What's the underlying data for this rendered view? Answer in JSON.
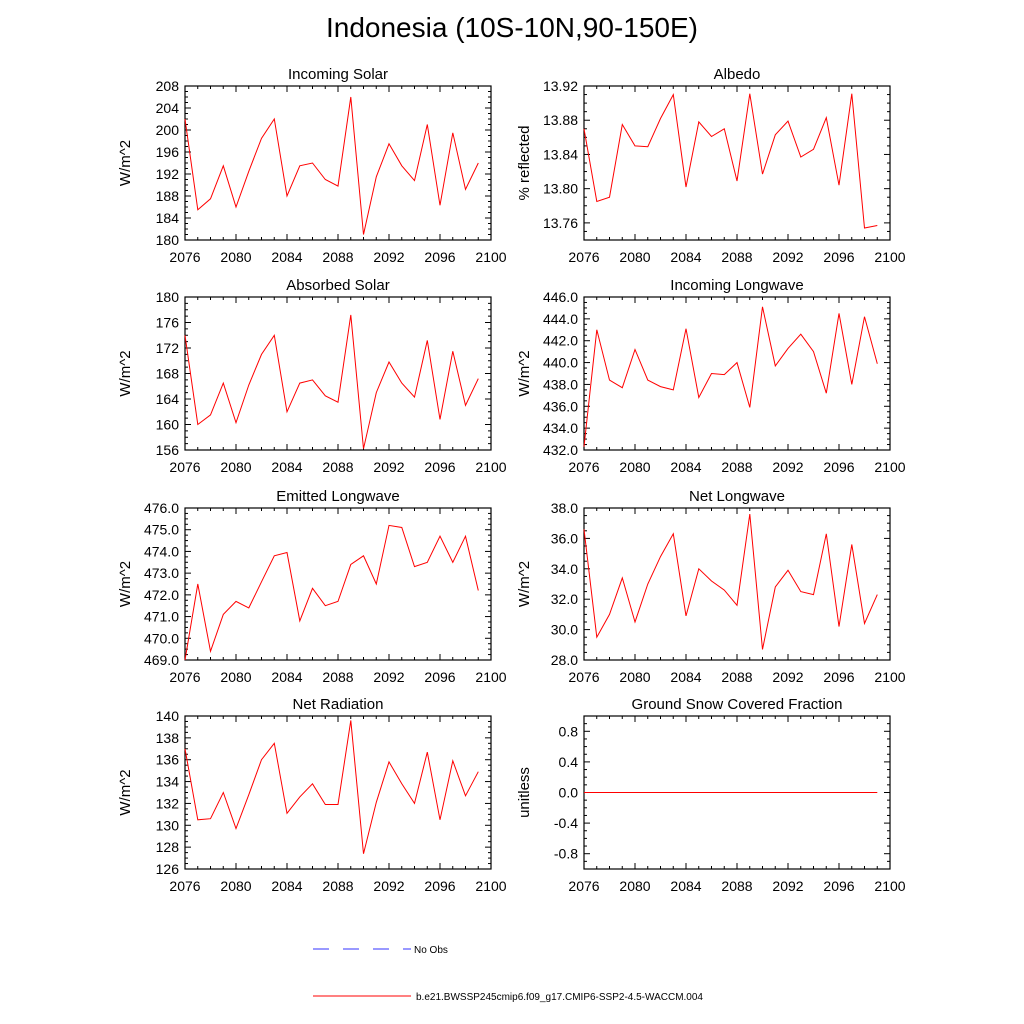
{
  "title": "Indonesia (10S-10N,90-150E)",
  "colors": {
    "model": "#ff0000",
    "obs": "#3333ff"
  },
  "legend": {
    "obs_label": "No Obs",
    "model_label": "b.e21.BWSSP245cmip6.f09_g17.CMIP6-SSP2-4.5-WACCM.004"
  },
  "chart_data": [
    {
      "type": "line",
      "title": "Incoming Solar",
      "xlabel": "",
      "ylabel": "W/m^2",
      "xlim": [
        2076,
        2100
      ],
      "ylim": [
        180,
        208
      ],
      "xticks": [
        2076,
        2080,
        2084,
        2088,
        2092,
        2096,
        2100
      ],
      "yticks": [
        180,
        184,
        188,
        192,
        196,
        200,
        204,
        208
      ],
      "ytick_labels": [
        "180",
        "184",
        "188",
        "192",
        "196",
        "200",
        "204",
        "208"
      ],
      "series": [
        {
          "name": "b.e21.BWSSP245cmip6.f09_g17.CMIP6-SSP2-4.5-WACCM.004",
          "x": [
            2076,
            2077,
            2078,
            2079,
            2080,
            2081,
            2082,
            2083,
            2084,
            2085,
            2086,
            2087,
            2088,
            2089,
            2090,
            2091,
            2092,
            2093,
            2094,
            2095,
            2096,
            2097,
            2098,
            2099
          ],
          "values": [
            202.0,
            185.5,
            187.5,
            193.5,
            186.0,
            192.5,
            198.5,
            202.0,
            188.0,
            193.5,
            194.0,
            191.0,
            189.8,
            206.0,
            181.0,
            191.5,
            197.5,
            193.5,
            190.8,
            201.0,
            186.3,
            199.5,
            189.2,
            194.0
          ]
        }
      ]
    },
    {
      "type": "line",
      "title": "Albedo",
      "xlabel": "",
      "ylabel": "% reflected",
      "xlim": [
        2076,
        2100
      ],
      "ylim": [
        13.74,
        13.92
      ],
      "xticks": [
        2076,
        2080,
        2084,
        2088,
        2092,
        2096,
        2100
      ],
      "yticks": [
        13.76,
        13.8,
        13.84,
        13.88,
        13.92
      ],
      "ytick_labels": [
        "13.76",
        "13.80",
        "13.84",
        "13.88",
        "13.92"
      ],
      "series": [
        {
          "name": "b.e21.BWSSP245cmip6.f09_g17.CMIP6-SSP2-4.5-WACCM.004",
          "x": [
            2076,
            2077,
            2078,
            2079,
            2080,
            2081,
            2082,
            2083,
            2084,
            2085,
            2086,
            2087,
            2088,
            2089,
            2090,
            2091,
            2092,
            2093,
            2094,
            2095,
            2096,
            2097,
            2098,
            2099
          ],
          "values": [
            13.87,
            13.785,
            13.79,
            13.875,
            13.85,
            13.849,
            13.882,
            13.91,
            13.802,
            13.878,
            13.861,
            13.87,
            13.809,
            13.911,
            13.817,
            13.863,
            13.879,
            13.837,
            13.846,
            13.883,
            13.804,
            13.911,
            13.754,
            13.757
          ]
        }
      ]
    },
    {
      "type": "line",
      "title": "Absorbed Solar",
      "xlabel": "",
      "ylabel": "W/m^2",
      "xlim": [
        2076,
        2100
      ],
      "ylim": [
        156,
        180
      ],
      "xticks": [
        2076,
        2080,
        2084,
        2088,
        2092,
        2096,
        2100
      ],
      "yticks": [
        156,
        160,
        164,
        168,
        172,
        176,
        180
      ],
      "ytick_labels": [
        "156",
        "160",
        "164",
        "168",
        "172",
        "176",
        "180"
      ],
      "series": [
        {
          "name": "b.e21.BWSSP245cmip6.f09_g17.CMIP6-SSP2-4.5-WACCM.004",
          "x": [
            2076,
            2077,
            2078,
            2079,
            2080,
            2081,
            2082,
            2083,
            2084,
            2085,
            2086,
            2087,
            2088,
            2089,
            2090,
            2091,
            2092,
            2093,
            2094,
            2095,
            2096,
            2097,
            2098,
            2099
          ],
          "values": [
            174.0,
            160.0,
            161.5,
            166.5,
            160.3,
            166.2,
            171.0,
            174.0,
            162.0,
            166.5,
            167.0,
            164.5,
            163.5,
            177.2,
            156.2,
            165.0,
            169.8,
            166.5,
            164.3,
            173.2,
            160.8,
            171.5,
            163.0,
            167.2
          ]
        }
      ]
    },
    {
      "type": "line",
      "title": "Incoming Longwave",
      "xlabel": "",
      "ylabel": "W/m^2",
      "xlim": [
        2076,
        2100
      ],
      "ylim": [
        432,
        446
      ],
      "xticks": [
        2076,
        2080,
        2084,
        2088,
        2092,
        2096,
        2100
      ],
      "yticks": [
        432,
        434,
        436,
        438,
        440,
        442,
        444,
        446
      ],
      "ytick_labels": [
        "432.0",
        "434.0",
        "436.0",
        "438.0",
        "440.0",
        "442.0",
        "444.0",
        "446.0"
      ],
      "series": [
        {
          "name": "b.e21.BWSSP245cmip6.f09_g17.CMIP6-SSP2-4.5-WACCM.004",
          "x": [
            2076,
            2077,
            2078,
            2079,
            2080,
            2081,
            2082,
            2083,
            2084,
            2085,
            2086,
            2087,
            2088,
            2089,
            2090,
            2091,
            2092,
            2093,
            2094,
            2095,
            2096,
            2097,
            2098,
            2099
          ],
          "values": [
            432.3,
            443.0,
            438.4,
            437.7,
            441.2,
            438.4,
            437.8,
            437.5,
            443.1,
            436.8,
            439.0,
            438.9,
            440.0,
            435.9,
            445.1,
            439.7,
            441.3,
            442.6,
            441.0,
            437.2,
            444.5,
            438.0,
            444.2,
            439.9
          ]
        }
      ]
    },
    {
      "type": "line",
      "title": "Emitted Longwave",
      "xlabel": "",
      "ylabel": "W/m^2",
      "xlim": [
        2076,
        2100
      ],
      "ylim": [
        469,
        476
      ],
      "xticks": [
        2076,
        2080,
        2084,
        2088,
        2092,
        2096,
        2100
      ],
      "yticks": [
        469,
        470,
        471,
        472,
        473,
        474,
        475,
        476
      ],
      "ytick_labels": [
        "469.0",
        "470.0",
        "471.0",
        "472.0",
        "473.0",
        "474.0",
        "475.0",
        "476.0"
      ],
      "series": [
        {
          "name": "b.e21.BWSSP245cmip6.f09_g17.CMIP6-SSP2-4.5-WACCM.004",
          "x": [
            2076,
            2077,
            2078,
            2079,
            2080,
            2081,
            2082,
            2083,
            2084,
            2085,
            2086,
            2087,
            2088,
            2089,
            2090,
            2091,
            2092,
            2093,
            2094,
            2095,
            2096,
            2097,
            2098,
            2099
          ],
          "values": [
            469.0,
            472.5,
            469.4,
            471.1,
            471.7,
            471.4,
            472.6,
            473.8,
            473.95,
            470.8,
            472.3,
            471.5,
            471.7,
            473.4,
            473.8,
            472.5,
            475.2,
            475.1,
            473.3,
            473.5,
            474.7,
            473.5,
            474.7,
            472.2
          ]
        }
      ]
    },
    {
      "type": "line",
      "title": "Net Longwave",
      "xlabel": "",
      "ylabel": "W/m^2",
      "xlim": [
        2076,
        2100
      ],
      "ylim": [
        28,
        38
      ],
      "xticks": [
        2076,
        2080,
        2084,
        2088,
        2092,
        2096,
        2100
      ],
      "yticks": [
        28,
        30,
        32,
        34,
        36,
        38
      ],
      "ytick_labels": [
        "28.0",
        "30.0",
        "32.0",
        "34.0",
        "36.0",
        "38.0"
      ],
      "series": [
        {
          "name": "b.e21.BWSSP245cmip6.f09_g17.CMIP6-SSP2-4.5-WACCM.004",
          "x": [
            2076,
            2077,
            2078,
            2079,
            2080,
            2081,
            2082,
            2083,
            2084,
            2085,
            2086,
            2087,
            2088,
            2089,
            2090,
            2091,
            2092,
            2093,
            2094,
            2095,
            2096,
            2097,
            2098,
            2099
          ],
          "values": [
            36.6,
            29.5,
            31.0,
            33.4,
            30.5,
            33.0,
            34.8,
            36.3,
            30.9,
            34.0,
            33.2,
            32.6,
            31.6,
            37.6,
            28.7,
            32.8,
            33.9,
            32.5,
            32.3,
            36.3,
            30.2,
            35.6,
            30.4,
            32.3
          ]
        }
      ]
    },
    {
      "type": "line",
      "title": "Net Radiation",
      "xlabel": "",
      "ylabel": "W/m^2",
      "xlim": [
        2076,
        2100
      ],
      "ylim": [
        126,
        140
      ],
      "xticks": [
        2076,
        2080,
        2084,
        2088,
        2092,
        2096,
        2100
      ],
      "yticks": [
        126,
        128,
        130,
        132,
        134,
        136,
        138,
        140
      ],
      "ytick_labels": [
        "126",
        "128",
        "130",
        "132",
        "134",
        "136",
        "138",
        "140"
      ],
      "series": [
        {
          "name": "b.e21.BWSSP245cmip6.f09_g17.CMIP6-SSP2-4.5-WACCM.004",
          "x": [
            2076,
            2077,
            2078,
            2079,
            2080,
            2081,
            2082,
            2083,
            2084,
            2085,
            2086,
            2087,
            2088,
            2089,
            2090,
            2091,
            2092,
            2093,
            2094,
            2095,
            2096,
            2097,
            2098,
            2099
          ],
          "values": [
            137.0,
            130.5,
            130.6,
            133.0,
            129.7,
            132.8,
            136.0,
            137.5,
            131.1,
            132.6,
            133.8,
            131.9,
            131.9,
            139.6,
            127.4,
            132.1,
            135.8,
            133.8,
            132.0,
            136.7,
            130.5,
            135.9,
            132.7,
            134.9
          ]
        }
      ]
    },
    {
      "type": "line",
      "title": "Ground Snow Covered Fraction",
      "xlabel": "",
      "ylabel": "unitless",
      "xlim": [
        2076,
        2100
      ],
      "ylim": [
        -1.0,
        1.0
      ],
      "xticks": [
        2076,
        2080,
        2084,
        2088,
        2092,
        2096,
        2100
      ],
      "yticks": [
        -0.8,
        -0.4,
        0.0,
        0.4,
        0.8
      ],
      "ytick_labels": [
        "-0.8",
        "-0.4",
        "0.0",
        "0.4",
        "0.8"
      ],
      "series": [
        {
          "name": "b.e21.BWSSP245cmip6.f09_g17.CMIP6-SSP2-4.5-WACCM.004",
          "x": [
            2076,
            2077,
            2078,
            2079,
            2080,
            2081,
            2082,
            2083,
            2084,
            2085,
            2086,
            2087,
            2088,
            2089,
            2090,
            2091,
            2092,
            2093,
            2094,
            2095,
            2096,
            2097,
            2098,
            2099
          ],
          "values": [
            0,
            0,
            0,
            0,
            0,
            0,
            0,
            0,
            0,
            0,
            0,
            0,
            0,
            0,
            0,
            0,
            0,
            0,
            0,
            0,
            0,
            0,
            0,
            0
          ]
        }
      ]
    }
  ]
}
